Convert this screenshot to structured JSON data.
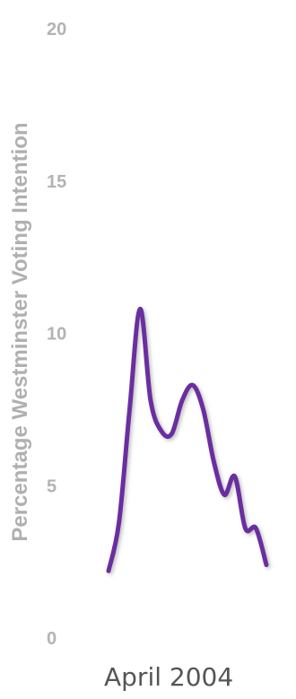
{
  "chart_data": {
    "type": "line",
    "title": "",
    "xlabel": "",
    "ylabel": "Percentage Westminster Voting Intention",
    "ylim": [
      0,
      20
    ],
    "yticks": [
      0,
      5,
      10,
      15,
      20
    ],
    "x_tick_labels": [
      "April 2004"
    ],
    "grid": false,
    "legend": "none",
    "colors": {
      "line": "#6a2fa0",
      "shadow": "#8a8a8a",
      "tick_text": "#b3b3b3",
      "axis_title": "#b0b0b0",
      "x_tick_text": "#555555"
    },
    "series": [
      {
        "values": [
          2.2,
          3.8,
          7.5,
          10.8,
          7.8,
          6.8,
          6.7,
          7.8,
          8.3,
          7.5,
          5.8,
          4.7,
          5.3,
          3.6,
          3.6,
          2.4
        ]
      }
    ]
  }
}
